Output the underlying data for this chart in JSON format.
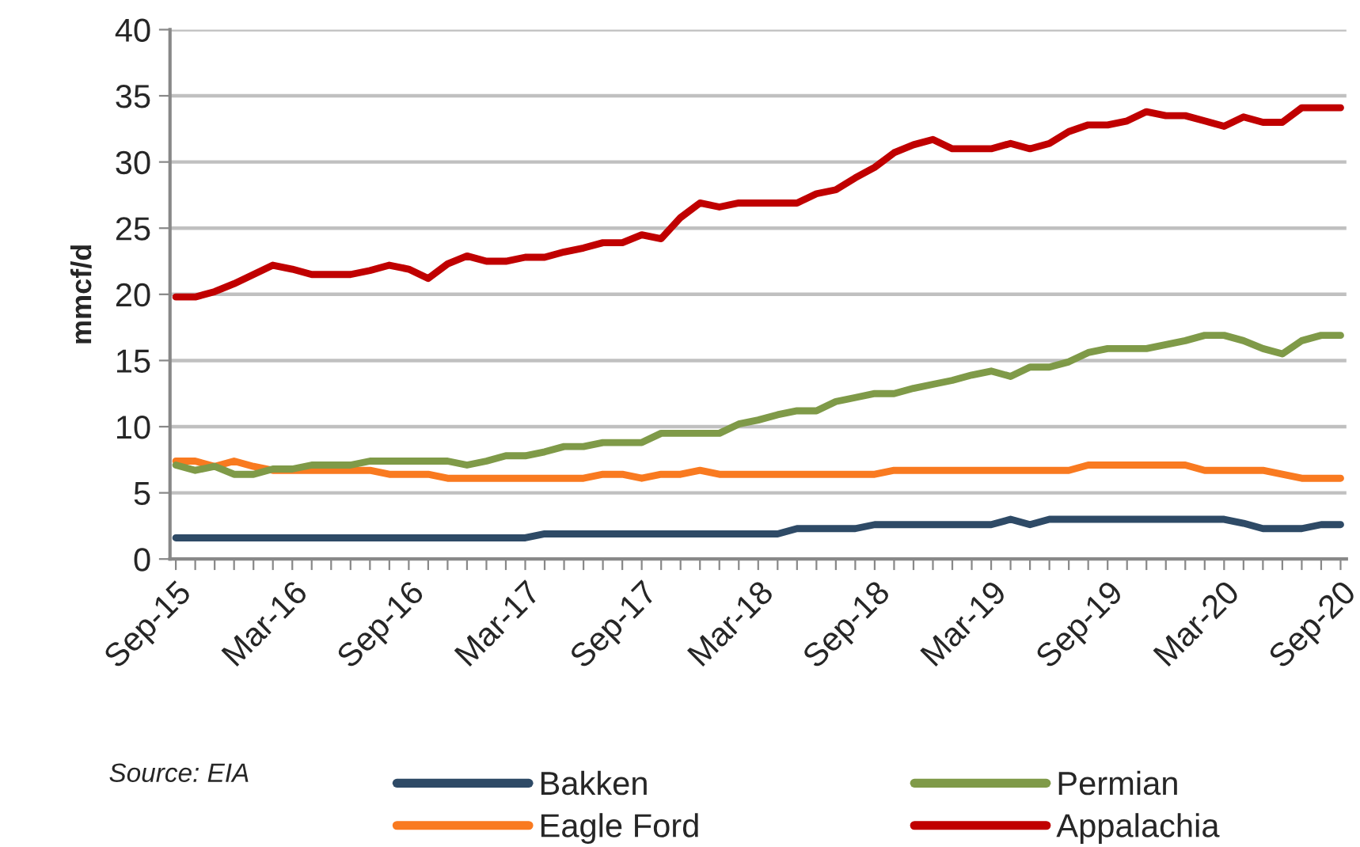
{
  "chart_data": {
    "type": "line",
    "ylabel": "mmcf/d",
    "ylim": [
      0,
      40
    ],
    "yticks": [
      0,
      5,
      10,
      15,
      20,
      25,
      30,
      35,
      40
    ],
    "grid": "y",
    "legend": "bottom",
    "line_style": "solid",
    "marker": "none",
    "annotations": [
      "Source: EIA"
    ],
    "categories": [
      "Sep-15",
      null,
      null,
      null,
      null,
      null,
      "Mar-16",
      null,
      null,
      null,
      null,
      null,
      "Sep-16",
      null,
      null,
      null,
      null,
      null,
      "Mar-17",
      null,
      null,
      null,
      null,
      null,
      "Sep-17",
      null,
      null,
      null,
      null,
      null,
      "Mar-18",
      null,
      null,
      null,
      null,
      null,
      "Sep-18",
      null,
      null,
      null,
      null,
      null,
      "Mar-19",
      null,
      null,
      null,
      null,
      null,
      "Sep-19",
      null,
      null,
      null,
      null,
      null,
      "Mar-20",
      null,
      null,
      null,
      null,
      null,
      "Sep-20"
    ],
    "series": [
      {
        "name": "Bakken",
        "color": "#2e4a66",
        "values": [
          1.6,
          1.6,
          1.6,
          1.6,
          1.6,
          1.6,
          1.6,
          1.6,
          1.6,
          1.6,
          1.6,
          1.6,
          1.6,
          1.6,
          1.6,
          1.6,
          1.6,
          1.6,
          1.6,
          1.9,
          1.9,
          1.9,
          1.9,
          1.9,
          1.9,
          1.9,
          1.9,
          1.9,
          1.9,
          1.9,
          1.9,
          1.9,
          2.3,
          2.3,
          2.3,
          2.3,
          2.6,
          2.6,
          2.6,
          2.6,
          2.6,
          2.6,
          2.6,
          3.0,
          2.6,
          3.0,
          3.0,
          3.0,
          3.0,
          3.0,
          3.0,
          3.0,
          3.0,
          3.0,
          3.0,
          2.7,
          2.3,
          2.3,
          2.3,
          2.6,
          2.6
        ]
      },
      {
        "name": "Eagle Ford",
        "color": "#f97a20",
        "values": [
          7.4,
          7.4,
          7.0,
          7.4,
          7.0,
          6.7,
          6.7,
          6.7,
          6.7,
          6.7,
          6.7,
          6.4,
          6.4,
          6.4,
          6.1,
          6.1,
          6.1,
          6.1,
          6.1,
          6.1,
          6.1,
          6.1,
          6.4,
          6.4,
          6.1,
          6.4,
          6.4,
          6.7,
          6.4,
          6.4,
          6.4,
          6.4,
          6.4,
          6.4,
          6.4,
          6.4,
          6.4,
          6.7,
          6.7,
          6.7,
          6.7,
          6.7,
          6.7,
          6.7,
          6.7,
          6.7,
          6.7,
          7.1,
          7.1,
          7.1,
          7.1,
          7.1,
          7.1,
          6.7,
          6.7,
          6.7,
          6.7,
          6.4,
          6.1,
          6.1,
          6.1
        ]
      },
      {
        "name": "Permian",
        "color": "#7f9a48",
        "values": [
          7.1,
          6.7,
          7.0,
          6.4,
          6.4,
          6.8,
          6.8,
          7.1,
          7.1,
          7.1,
          7.4,
          7.4,
          7.4,
          7.4,
          7.4,
          7.1,
          7.4,
          7.8,
          7.8,
          8.1,
          8.5,
          8.5,
          8.8,
          8.8,
          8.8,
          9.5,
          9.5,
          9.5,
          9.5,
          10.2,
          10.5,
          10.9,
          11.2,
          11.2,
          11.9,
          12.2,
          12.5,
          12.5,
          12.9,
          13.2,
          13.5,
          13.9,
          14.2,
          13.8,
          14.5,
          14.5,
          14.9,
          15.6,
          15.9,
          15.9,
          15.9,
          16.2,
          16.5,
          16.9,
          16.9,
          16.5,
          15.9,
          15.5,
          16.5,
          16.9,
          16.9
        ]
      },
      {
        "name": "Appalachia",
        "color": "#c00000",
        "values": [
          19.8,
          19.8,
          20.2,
          20.8,
          21.5,
          22.2,
          21.9,
          21.5,
          21.5,
          21.5,
          21.8,
          22.2,
          21.9,
          21.2,
          22.3,
          22.9,
          22.5,
          22.5,
          22.8,
          22.8,
          23.2,
          23.5,
          23.9,
          23.9,
          24.5,
          24.2,
          25.8,
          26.9,
          26.6,
          26.9,
          26.9,
          26.9,
          26.9,
          27.6,
          27.9,
          28.8,
          29.6,
          30.7,
          31.3,
          31.7,
          31.0,
          31.0,
          31.0,
          31.4,
          31.0,
          31.4,
          32.3,
          32.8,
          32.8,
          33.1,
          33.8,
          33.5,
          33.5,
          33.1,
          32.7,
          33.4,
          33.0,
          33.0,
          34.1,
          34.1,
          34.1
        ]
      }
    ]
  }
}
